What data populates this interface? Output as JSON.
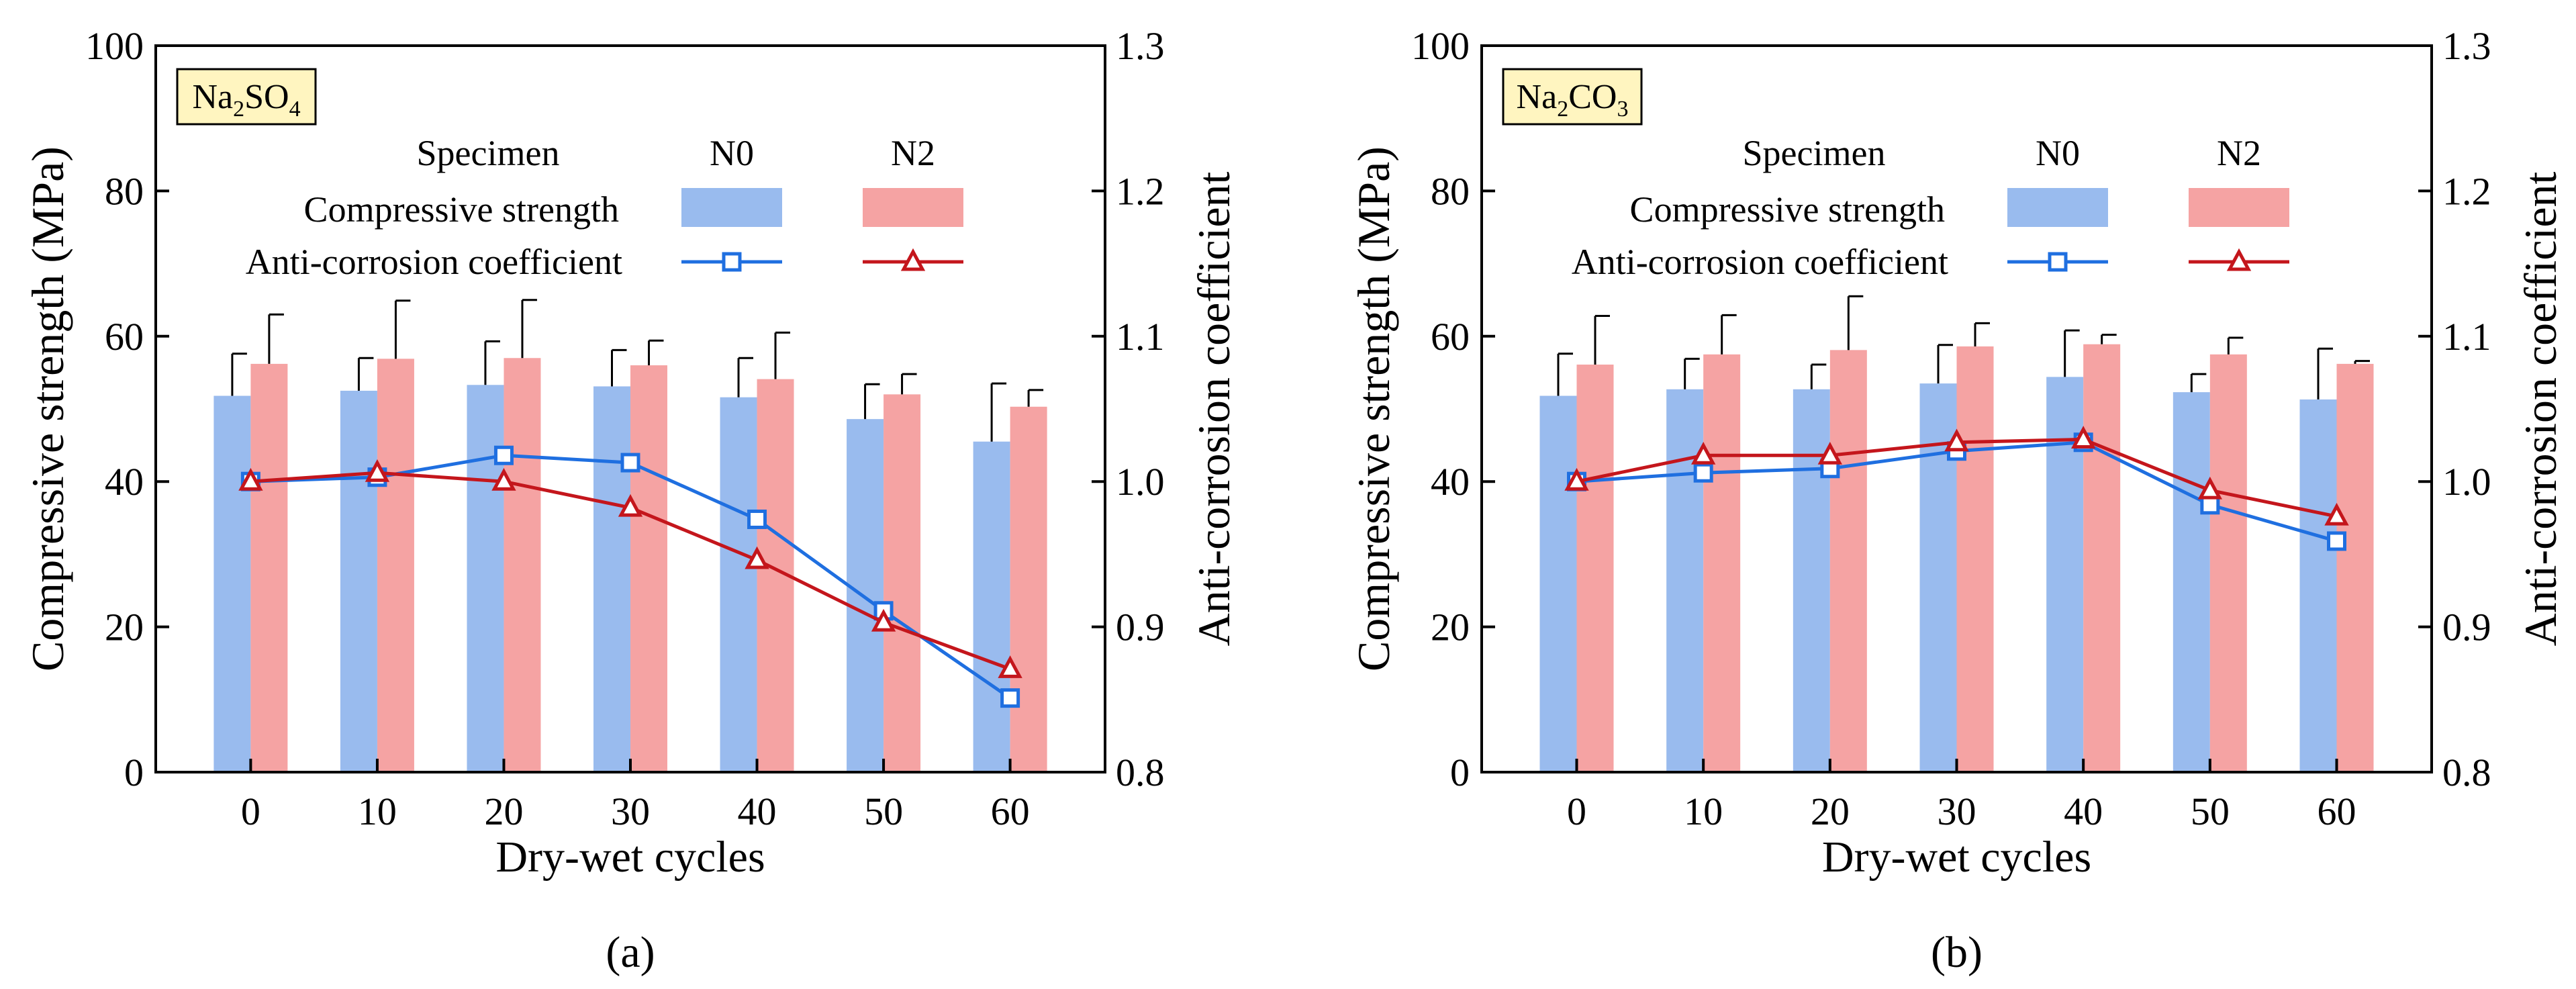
{
  "figure": {
    "colors": {
      "n0_bar": "#99bbee",
      "n2_bar": "#f5a3a3",
      "n0_line": "#1f6fe0",
      "n2_line": "#c4161c",
      "label_box": "#fff5c0"
    }
  },
  "chart_data": [
    {
      "type": "bar",
      "panel_label": "(a)",
      "salt": {
        "base": "Na",
        "sub1": "2",
        "mid": "SO",
        "sub2": "4"
      },
      "xlabel": "Dry-wet cycles",
      "ylabel": "Compressive strength (MPa)",
      "y2label": "Anti-corrosion coefficient",
      "categories": [
        "0",
        "10",
        "20",
        "30",
        "40",
        "50",
        "60"
      ],
      "ylim": [
        0,
        100
      ],
      "yticks": [
        "0",
        "20",
        "40",
        "60",
        "80",
        "100"
      ],
      "y2lim": [
        0.8,
        1.3
      ],
      "y2ticks": [
        "0.8",
        "0.9",
        "1.0",
        "1.1",
        "1.2",
        "1.3"
      ],
      "legend": {
        "header": "Specimen",
        "row1": "Compressive strength",
        "row2": "Anti-corrosion coefficient",
        "col1": "N0",
        "col2": "N2"
      },
      "bar_series": [
        {
          "name": "N0",
          "values": [
            51.8,
            52.5,
            53.3,
            53.1,
            51.6,
            48.6,
            45.5
          ],
          "errors": [
            5.8,
            4.5,
            6.0,
            5.0,
            5.4,
            4.8,
            8.0
          ]
        },
        {
          "name": "N2",
          "values": [
            56.2,
            56.9,
            57.0,
            56.0,
            54.1,
            52.0,
            50.3
          ],
          "errors": [
            6.8,
            8.0,
            8.0,
            3.4,
            6.4,
            2.8,
            2.3
          ]
        }
      ],
      "line_series": [
        {
          "name": "N0",
          "marker": "square",
          "values": [
            1.0,
            1.003,
            1.018,
            1.013,
            0.974,
            0.911,
            0.851
          ]
        },
        {
          "name": "N2",
          "marker": "triangle",
          "values": [
            1.0,
            1.006,
            1.0,
            0.982,
            0.946,
            0.903,
            0.871
          ]
        }
      ]
    },
    {
      "type": "bar",
      "panel_label": "(b)",
      "salt": {
        "base": "Na",
        "sub1": "2",
        "mid": "CO",
        "sub2": "3"
      },
      "xlabel": "Dry-wet cycles",
      "ylabel": "Compressive strength (MPa)",
      "y2label": "Anti-corrosion coefficient",
      "categories": [
        "0",
        "10",
        "20",
        "30",
        "40",
        "50",
        "60"
      ],
      "ylim": [
        0,
        100
      ],
      "yticks": [
        "0",
        "20",
        "40",
        "60",
        "80",
        "100"
      ],
      "y2lim": [
        0.8,
        1.3
      ],
      "y2ticks": [
        "0.8",
        "0.9",
        "1.0",
        "1.1",
        "1.2",
        "1.3"
      ],
      "legend": {
        "header": "Specimen",
        "row1": "Compressive strength",
        "row2": "Anti-corrosion coefficient",
        "col1": "N0",
        "col2": "N2"
      },
      "bar_series": [
        {
          "name": "N0",
          "values": [
            51.8,
            52.7,
            52.7,
            53.5,
            54.4,
            52.3,
            51.3
          ],
          "errors": [
            5.8,
            4.2,
            3.4,
            5.3,
            6.4,
            2.5,
            7.0
          ]
        },
        {
          "name": "N2",
          "values": [
            56.1,
            57.5,
            58.1,
            58.6,
            58.9,
            57.5,
            56.2
          ],
          "errors": [
            6.7,
            5.4,
            7.4,
            3.2,
            1.3,
            2.3,
            0.4
          ]
        }
      ],
      "line_series": [
        {
          "name": "N0",
          "marker": "square",
          "values": [
            1.0,
            1.006,
            1.009,
            1.021,
            1.027,
            0.984,
            0.959
          ]
        },
        {
          "name": "N2",
          "marker": "triangle",
          "values": [
            1.0,
            1.018,
            1.018,
            1.027,
            1.029,
            0.994,
            0.976
          ]
        }
      ]
    }
  ]
}
